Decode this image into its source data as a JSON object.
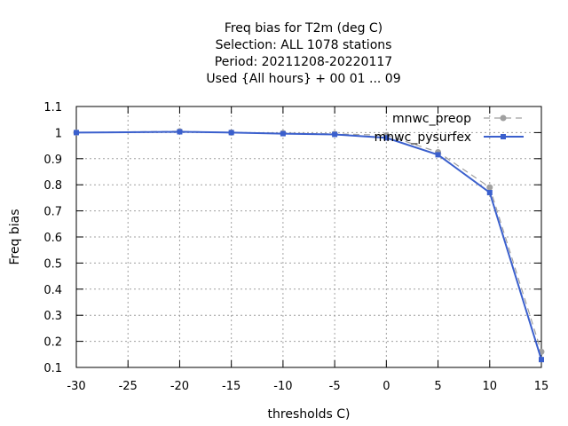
{
  "chart_data": {
    "type": "line",
    "title_lines": [
      "Freq bias  for T2m (deg C)",
      "Selection: ALL    1078 stations",
      "Period: 20211208-20220117",
      "Used {All hours} + 00 01 ... 09"
    ],
    "xlabel": "thresholds C)",
    "ylabel": "Freq bias",
    "xlim": [
      -30,
      15
    ],
    "ylim": [
      0.1,
      1.1
    ],
    "x_ticks": [
      -30,
      -25,
      -20,
      -15,
      -10,
      -5,
      0,
      5,
      10,
      15
    ],
    "y_ticks": [
      0.1,
      0.2,
      0.3,
      0.4,
      0.5,
      0.6,
      0.7,
      0.8,
      0.9,
      1,
      1.1
    ],
    "grid": true,
    "legend_position": "top-right",
    "x": [
      -30,
      -20,
      -15,
      -10,
      -5,
      0,
      5,
      10,
      15
    ],
    "series": [
      {
        "name": "mnwc_preop",
        "color": "#a0a0a0",
        "dash": "dashed",
        "values": [
          1.0,
          1.005,
          1.0,
          0.998,
          0.995,
          0.99,
          0.925,
          0.79,
          0.16
        ]
      },
      {
        "name": "mnwc_pysurfex",
        "color": "#3a5fcd",
        "dash": "solid",
        "values": [
          1.0,
          1.003,
          1.0,
          0.996,
          0.993,
          0.98,
          0.915,
          0.77,
          0.13
        ]
      }
    ]
  }
}
